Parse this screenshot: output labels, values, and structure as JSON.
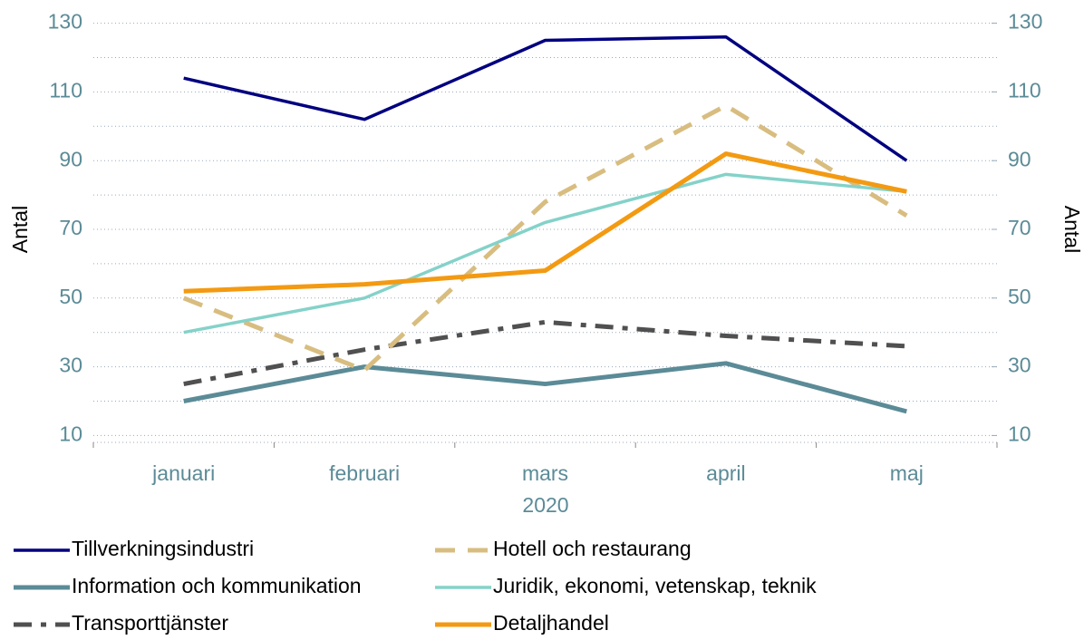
{
  "chart_data": {
    "type": "line",
    "x_label": "2020",
    "y_label": "Antal",
    "y2_label": "Antal",
    "categories": [
      "januari",
      "februari",
      "mars",
      "april",
      "maj"
    ],
    "ylim": [
      8,
      132
    ],
    "yticks": [
      10,
      30,
      50,
      70,
      90,
      110,
      130
    ],
    "y2lim": [
      8,
      132
    ],
    "y2ticks": [
      10,
      30,
      50,
      70,
      90,
      110,
      130
    ],
    "minor_grid": [
      20,
      40,
      60,
      80,
      100,
      120
    ],
    "grid": true,
    "series": [
      {
        "name": "Tillverkningsindustri",
        "color": "#000080",
        "dash": "solid",
        "width": 3.5,
        "values": [
          114,
          102,
          125,
          126,
          90
        ]
      },
      {
        "name": "Hotell och restaurang",
        "color": "#d8bd80",
        "dash": "dashed",
        "width": 5,
        "values": [
          50,
          29,
          78,
          106,
          74
        ]
      },
      {
        "name": "Information och kommunikation",
        "color": "#5b8b97",
        "dash": "solid",
        "width": 5,
        "values": [
          20,
          30,
          25,
          31,
          17
        ]
      },
      {
        "name": "Juridik, ekonomi, vetenskap, teknik",
        "color": "#84d2c9",
        "dash": "solid",
        "width": 3.5,
        "values": [
          40,
          50,
          72,
          86,
          81
        ]
      },
      {
        "name": "Transporttjänster",
        "color": "#505050",
        "dash": "dashdot",
        "width": 5,
        "values": [
          25,
          35,
          43,
          39,
          36
        ]
      },
      {
        "name": "Detaljhandel",
        "color": "#f39a12",
        "dash": "solid",
        "width": 5,
        "values": [
          52,
          54,
          58,
          92,
          81
        ]
      }
    ]
  }
}
